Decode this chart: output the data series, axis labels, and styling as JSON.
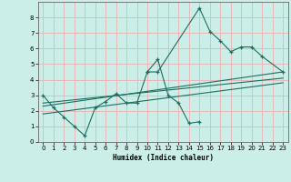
{
  "xlabel": "Humidex (Indice chaleur)",
  "bg_color": "#cceee8",
  "grid_color": "#e8b8b8",
  "line_color": "#1a7060",
  "xlim": [
    -0.5,
    23.5
  ],
  "ylim": [
    0,
    9
  ],
  "xticks": [
    0,
    1,
    2,
    3,
    4,
    5,
    6,
    7,
    8,
    9,
    10,
    11,
    12,
    13,
    14,
    15,
    16,
    17,
    18,
    19,
    20,
    21,
    22,
    23
  ],
  "yticks": [
    0,
    1,
    2,
    3,
    4,
    5,
    6,
    7,
    8
  ],
  "line1_x": [
    0,
    1,
    2,
    3,
    4,
    5,
    6,
    7,
    8,
    9,
    10,
    11,
    12,
    13,
    14,
    15
  ],
  "line1_y": [
    3.0,
    2.2,
    1.6,
    1.0,
    0.4,
    2.2,
    2.6,
    3.1,
    2.5,
    2.5,
    4.5,
    5.3,
    3.0,
    2.5,
    1.2,
    1.3
  ],
  "line2_x": [
    10,
    11,
    15,
    16,
    17,
    18,
    19,
    20,
    21,
    23
  ],
  "line2_y": [
    4.5,
    4.5,
    8.6,
    7.1,
    6.5,
    5.8,
    6.1,
    6.1,
    5.5,
    4.5
  ],
  "line3_x": [
    0,
    23
  ],
  "line3_y": [
    2.3,
    4.5
  ],
  "line4_x": [
    0,
    23
  ],
  "line4_y": [
    2.5,
    4.1
  ],
  "line5_x": [
    0,
    23
  ],
  "line5_y": [
    1.8,
    3.8
  ]
}
